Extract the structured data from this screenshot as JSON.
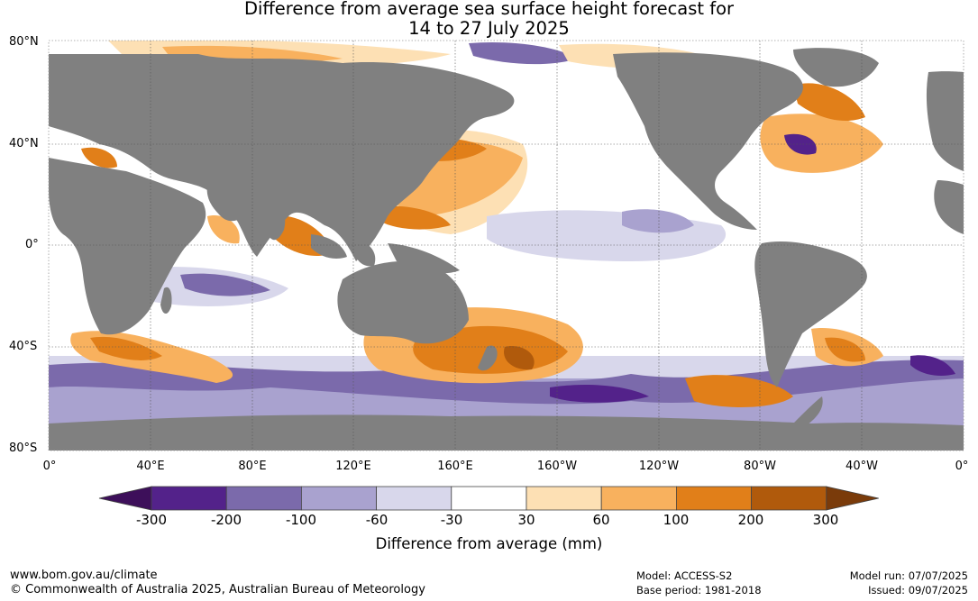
{
  "title_line1": "Difference from average sea surface height forecast for",
  "title_line2": "14 to 27 July 2025",
  "lat_labels": [
    "80°N",
    "40°N",
    "0°",
    "40°S",
    "80°S"
  ],
  "lon_labels": [
    "0°",
    "40°E",
    "80°E",
    "120°E",
    "160°E",
    "160°W",
    "120°W",
    "80°W",
    "40°W",
    "0°"
  ],
  "colorbar": {
    "title": "Difference from average (mm)",
    "tick_labels": [
      "-300",
      "-200",
      "-100",
      "-60",
      "-30",
      "30",
      "60",
      "100",
      "200",
      "300"
    ],
    "colors": [
      "#3d0f5a",
      "#53228a",
      "#7b6aab",
      "#a9a2cf",
      "#d8d7eb",
      "#ffffff",
      "#fde0b4",
      "#f8b15e",
      "#e17f19",
      "#b05a0c",
      "#7a3b0a"
    ]
  },
  "land_color": "#808080",
  "footer": {
    "url": "www.bom.gov.au/climate",
    "copyright": "© Commonwealth of Australia 2025, Australian Bureau of Meteorology",
    "model": "Model: ACCESS-S2",
    "base_period": "Base period: 1981-2018",
    "model_run": "Model run: 07/07/2025",
    "issued": "Issued: 09/07/2025"
  }
}
